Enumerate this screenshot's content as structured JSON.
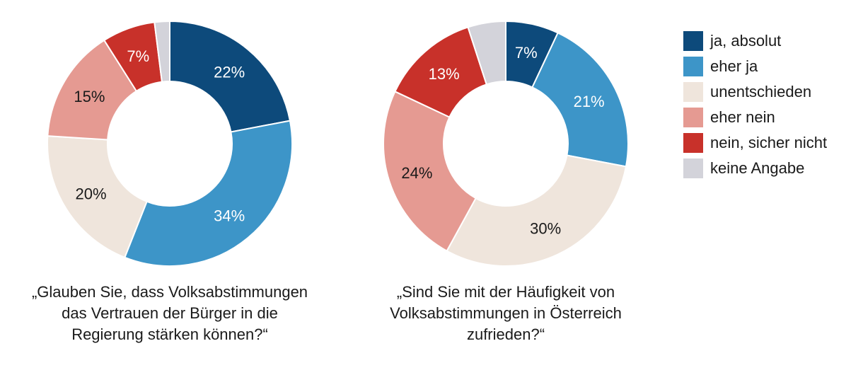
{
  "chart_data": {
    "type": "donut",
    "legend": [
      {
        "label": "ja, absolut",
        "color": "#0d4a7b"
      },
      {
        "label": "eher ja",
        "color": "#3d95c8"
      },
      {
        "label": "unentschieden",
        "color": "#efe5dc"
      },
      {
        "label": "eher nein",
        "color": "#e59a92"
      },
      {
        "label": "nein, sicher nicht",
        "color": "#c8312a"
      },
      {
        "label": "keine Angabe",
        "color": "#d3d3da"
      }
    ],
    "charts": [
      {
        "title": "„Glauben Sie, dass Volksabstimmungen das Vertrauen der Bürger in die Regierung stärken können?“",
        "values": [
          22,
          34,
          20,
          15,
          7,
          2
        ],
        "labels": [
          "22%",
          "34%",
          "20%",
          "15%",
          "7%",
          ""
        ]
      },
      {
        "title": "„Sind Sie mit der Häufigkeit von Volksabstimmungen in Österreich zufrieden?“",
        "values": [
          7,
          21,
          30,
          24,
          13,
          5
        ],
        "labels": [
          "7%",
          "21%",
          "30%",
          "24%",
          "13%",
          ""
        ]
      }
    ]
  }
}
